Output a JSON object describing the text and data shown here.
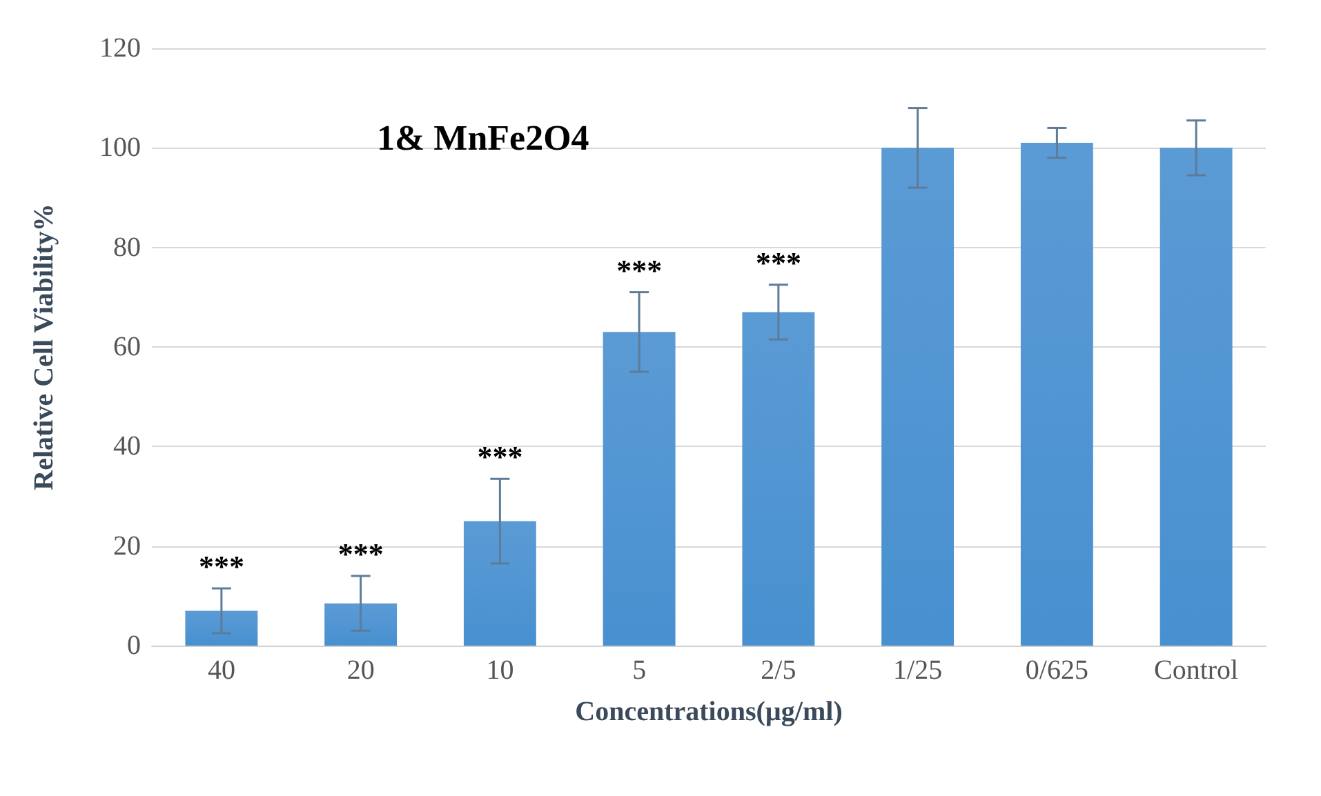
{
  "chart_data": {
    "type": "bar",
    "title": "1& MnFe2O4",
    "xlabel": "Concentrations(µg/ml)",
    "ylabel": "Relative Cell Viability%",
    "categories": [
      "40",
      "20",
      "10",
      "5",
      "2/5",
      "1/25",
      "0/625",
      "Control"
    ],
    "values": [
      7,
      8.5,
      25,
      63,
      67,
      100,
      101,
      100
    ],
    "errors": [
      4.5,
      5.5,
      8.5,
      8,
      5.5,
      8,
      3,
      5.5
    ],
    "color": "#5b9bd5",
    "ylim": [
      0,
      120
    ],
    "yticks": [
      0,
      20,
      40,
      60,
      80,
      100,
      120
    ],
    "grid": "y",
    "annotations": [
      "***",
      "***",
      "***",
      "***",
      "***"
    ]
  }
}
